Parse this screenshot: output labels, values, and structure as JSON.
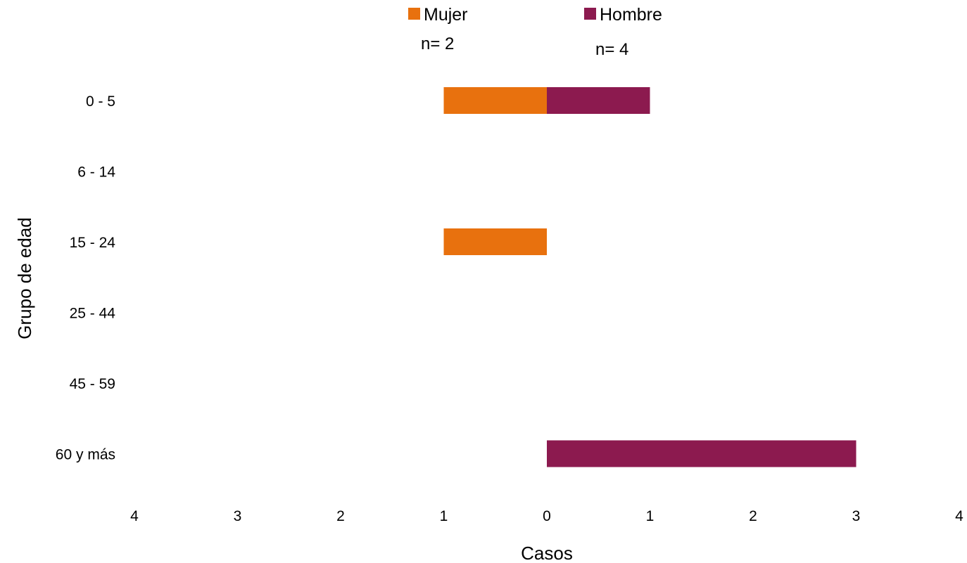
{
  "chart_data": {
    "type": "bar",
    "orientation": "horizontal",
    "layout": "population-pyramid",
    "categories": [
      "0 - 5",
      "6 - 14",
      "15 - 24",
      "25 - 44",
      "45 - 59",
      "60 y más"
    ],
    "series": [
      {
        "name": "Mujer",
        "side": "left",
        "color": "#e8710e",
        "values": [
          1,
          0,
          1,
          0,
          0,
          0
        ],
        "count_label": "n= 2"
      },
      {
        "name": "Hombre",
        "side": "right",
        "color": "#8c1a4f",
        "values": [
          1,
          0,
          0,
          0,
          0,
          3
        ],
        "count_label": "n= 4"
      }
    ],
    "xlabel": "Casos",
    "ylabel": "Grupo de edad",
    "xlim": [
      -4,
      4
    ],
    "x_tick_labels": [
      "4",
      "3",
      "2",
      "1",
      "0",
      "1",
      "2",
      "3",
      "4"
    ],
    "grid": false,
    "legend": "top"
  }
}
